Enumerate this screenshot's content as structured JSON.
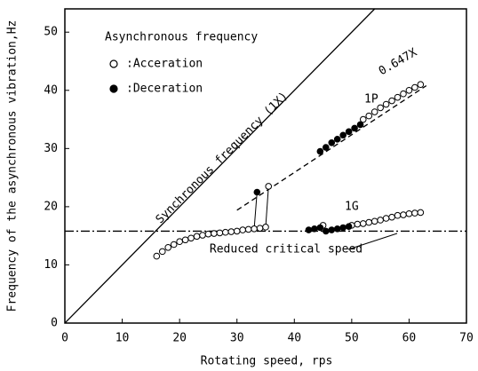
{
  "chart_data": {
    "type": "scatter",
    "x_label": "Rotating speed, rps",
    "y_label": "Frequency of the asynchronous vibration,Hz",
    "legend_title": "Asynchronous frequency",
    "xlim": [
      0,
      70
    ],
    "ylim": [
      0,
      54
    ],
    "xticks": [
      0,
      10,
      20,
      30,
      40,
      50,
      60,
      70
    ],
    "yticks": [
      0,
      10,
      20,
      30,
      40,
      50
    ],
    "series": [
      {
        "name": ":Acceration",
        "marker": "open",
        "color": "#000000",
        "x": [
          16,
          17,
          18,
          19,
          20,
          21,
          22,
          23,
          24,
          25,
          26,
          27,
          28,
          29,
          30,
          31,
          32,
          33,
          34,
          35,
          35.5,
          45,
          50,
          51,
          52,
          53,
          54,
          55,
          56,
          57,
          58,
          59,
          60,
          61,
          62,
          52,
          53,
          54,
          55,
          56,
          57,
          58,
          59,
          60,
          61,
          62
        ],
        "values": [
          11.5,
          12.3,
          13,
          13.5,
          14,
          14.3,
          14.6,
          14.9,
          15.1,
          15.3,
          15.4,
          15.5,
          15.6,
          15.7,
          15.8,
          16,
          16.1,
          16.2,
          16.3,
          16.5,
          23.5,
          16.8,
          16.8,
          17,
          17.1,
          17.3,
          17.5,
          17.7,
          18,
          18.2,
          18.5,
          18.6,
          18.8,
          18.9,
          19,
          35,
          35.6,
          36.3,
          37,
          37.6,
          38.2,
          38.8,
          39.4,
          40,
          40.5,
          41
        ]
      },
      {
        "name": ":Deceration",
        "marker": "filled",
        "color": "#000000",
        "x": [
          33.5,
          42.5,
          43.5,
          44.5,
          45.5,
          46.5,
          47.5,
          48.5,
          49.5,
          44.5,
          45.5,
          46.5,
          47.5,
          48.5,
          49.5,
          50.5,
          51.5
        ],
        "values": [
          22.5,
          16,
          16.2,
          16.4,
          15.8,
          16,
          16.2,
          16.4,
          16.6,
          29.5,
          30.2,
          31,
          31.6,
          32.3,
          32.9,
          33.5,
          34.1
        ]
      }
    ],
    "reference_lines": [
      {
        "label": "Synchronous frequency (1X)",
        "style": "solid",
        "x": [
          0,
          54
        ],
        "values": [
          0,
          54
        ]
      },
      {
        "label": "0.647X",
        "style": "dashed",
        "x": [
          30,
          63
        ],
        "values": [
          19.4,
          40.8
        ]
      },
      {
        "label": "Reduced critical speed",
        "style": "dashdot",
        "x": [
          0,
          70
        ],
        "values": [
          15.8,
          15.8
        ]
      }
    ],
    "annotations": [
      "1P",
      "1G"
    ]
  }
}
